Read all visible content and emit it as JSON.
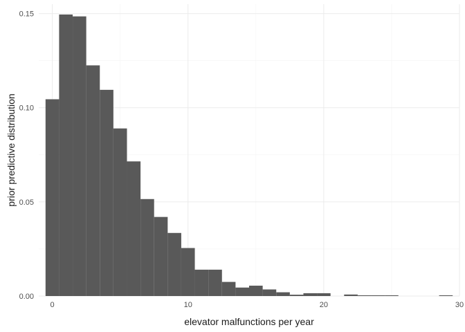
{
  "chart_data": {
    "type": "bar",
    "subtype": "histogram",
    "title": "",
    "xlabel": "elevator malfunctions per year",
    "ylabel": "prior predictive distribution",
    "bar_color": "#595959",
    "grid": true,
    "xlim": [
      -1,
      30
    ],
    "ylim": [
      0,
      0.155
    ],
    "x_ticks": [
      0,
      10,
      20,
      30
    ],
    "x_tick_labels": [
      "0",
      "10",
      "20",
      "30"
    ],
    "y_ticks": [
      0,
      0.05,
      0.1,
      0.15
    ],
    "y_tick_labels": [
      "0.00",
      "0.05",
      "0.10",
      "0.15"
    ],
    "bins": [
      {
        "x": 0,
        "value": 0.1045
      },
      {
        "x": 1,
        "value": 0.1495
      },
      {
        "x": 2,
        "value": 0.1485
      },
      {
        "x": 3,
        "value": 0.1225
      },
      {
        "x": 4,
        "value": 0.1095
      },
      {
        "x": 5,
        "value": 0.089
      },
      {
        "x": 6,
        "value": 0.0715
      },
      {
        "x": 7,
        "value": 0.0515
      },
      {
        "x": 8,
        "value": 0.042
      },
      {
        "x": 9,
        "value": 0.0335
      },
      {
        "x": 10,
        "value": 0.0255
      },
      {
        "x": 11,
        "value": 0.014
      },
      {
        "x": 12,
        "value": 0.014
      },
      {
        "x": 13,
        "value": 0.0075
      },
      {
        "x": 14,
        "value": 0.0045
      },
      {
        "x": 15,
        "value": 0.0055
      },
      {
        "x": 16,
        "value": 0.0035
      },
      {
        "x": 17,
        "value": 0.002
      },
      {
        "x": 18,
        "value": 0.0007
      },
      {
        "x": 19,
        "value": 0.0015
      },
      {
        "x": 20,
        "value": 0.0015
      },
      {
        "x": 21,
        "value": 0
      },
      {
        "x": 22,
        "value": 0.0008
      },
      {
        "x": 23,
        "value": 0.0004
      },
      {
        "x": 24,
        "value": 0.0004
      },
      {
        "x": 25,
        "value": 0.0004
      },
      {
        "x": 26,
        "value": 0
      },
      {
        "x": 27,
        "value": 0
      },
      {
        "x": 28,
        "value": 0
      },
      {
        "x": 29,
        "value": 0.0004
      }
    ]
  }
}
